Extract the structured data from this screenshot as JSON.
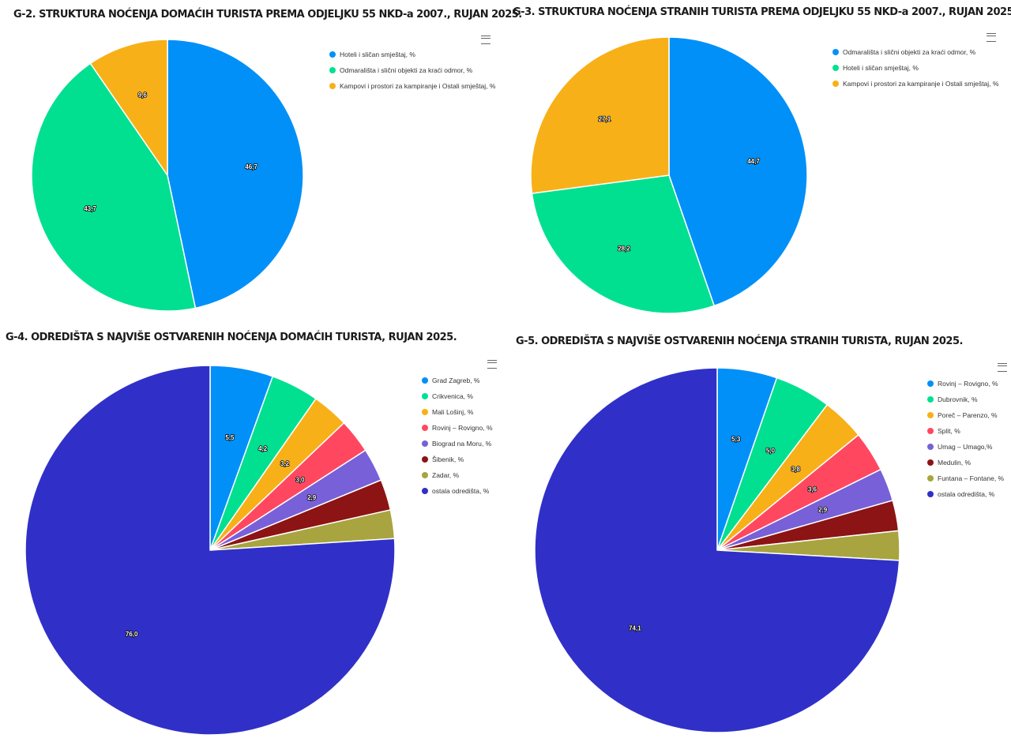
{
  "chart_data": [
    {
      "id": "g2",
      "type": "pie",
      "title": "G-2. STRUKTURA NOĆENJA DOMAĆIH TURISTA PREMA ODJELJKU 55 NKD-a 2007., RUJAN 2025.",
      "slices": [
        {
          "name": "Hoteli i sličan smještaj, %",
          "value": 46.7,
          "label": "46,7",
          "color": "#0090f8"
        },
        {
          "name": "Odmarališta i slični objekti za kraći odmor, %",
          "value": 43.7,
          "label": "43,7",
          "color": "#00e090"
        },
        {
          "name": "Kampovi i prostori za kampiranje i Ostali smještaj, %",
          "value": 9.6,
          "label": "9,6",
          "color": "#f8b018"
        }
      ]
    },
    {
      "id": "g3",
      "type": "pie",
      "title": "G-3. STRUKTURA NOĆENJA STRANIH TURISTA PREMA ODJELJKU 55 NKD-a 2007., RUJAN 2025.",
      "slices": [
        {
          "name": "Odmarališta i slični objekti za kraći odmor, %",
          "value": 44.7,
          "label": "44,7",
          "color": "#0090f8"
        },
        {
          "name": "Hoteli i sličan smještaj, %",
          "value": 28.2,
          "label": "28,2",
          "color": "#00e090"
        },
        {
          "name": "Kampovi i prostori za kampiranje i Ostali smještaj, %",
          "value": 27.1,
          "label": "27,1",
          "color": "#f8b018"
        }
      ]
    },
    {
      "id": "g4",
      "type": "pie",
      "title": "G-4. ODREDIŠTA S NAJVIŠE OSTVARENIH NOĆENJA DOMAĆIH TURISTA, RUJAN 2025.",
      "slices": [
        {
          "name": "Grad Zagreb, %",
          "value": 5.5,
          "label": "5,5",
          "color": "#0090f8"
        },
        {
          "name": "Crikvenica, %",
          "value": 4.2,
          "label": "4,2",
          "color": "#00e090"
        },
        {
          "name": "Mali Lošinj, %",
          "value": 3.2,
          "label": "3,2",
          "color": "#f8b018"
        },
        {
          "name": "Rovinj – Rovigno, %",
          "value": 3.0,
          "label": "3,0",
          "color": "#ff4860"
        },
        {
          "name": "Biograd na Moru, %",
          "value": 2.9,
          "label": "2,9",
          "color": "#7860d8"
        },
        {
          "name": "Šibenik, %",
          "value": 2.7,
          "label": "",
          "color": "#8c1414"
        },
        {
          "name": "Zadar, %",
          "value": 2.5,
          "label": "",
          "color": "#a8a440"
        },
        {
          "name": "ostala odredišta, %",
          "value": 76.0,
          "label": "76,0",
          "color": "#3030c8"
        }
      ]
    },
    {
      "id": "g5",
      "type": "pie",
      "title": "G-5. ODREDIŠTA S NAJVIŠE OSTVARENIH NOĆENJA STRANIH TURISTA, RUJAN 2025.",
      "slices": [
        {
          "name": "Rovinj – Rovigno, %",
          "value": 5.3,
          "label": "5,3",
          "color": "#0090f8"
        },
        {
          "name": "Dubrovnik, %",
          "value": 5.0,
          "label": "5,0",
          "color": "#00e090"
        },
        {
          "name": "Poreč – Parenzo, %",
          "value": 3.8,
          "label": "3,8",
          "color": "#f8b018"
        },
        {
          "name": "Split, %",
          "value": 3.6,
          "label": "3,6",
          "color": "#ff4860"
        },
        {
          "name": "Umag – Umago,%",
          "value": 2.9,
          "label": "2,9",
          "color": "#7860d8"
        },
        {
          "name": "Medulin, %",
          "value": 2.7,
          "label": "",
          "color": "#8c1414"
        },
        {
          "name": "Funtana – Fontane, %",
          "value": 2.6,
          "label": "",
          "color": "#a8a440"
        },
        {
          "name": "ostala odredišta, %",
          "value": 74.1,
          "label": "74,1",
          "color": "#3030c8"
        }
      ]
    }
  ]
}
